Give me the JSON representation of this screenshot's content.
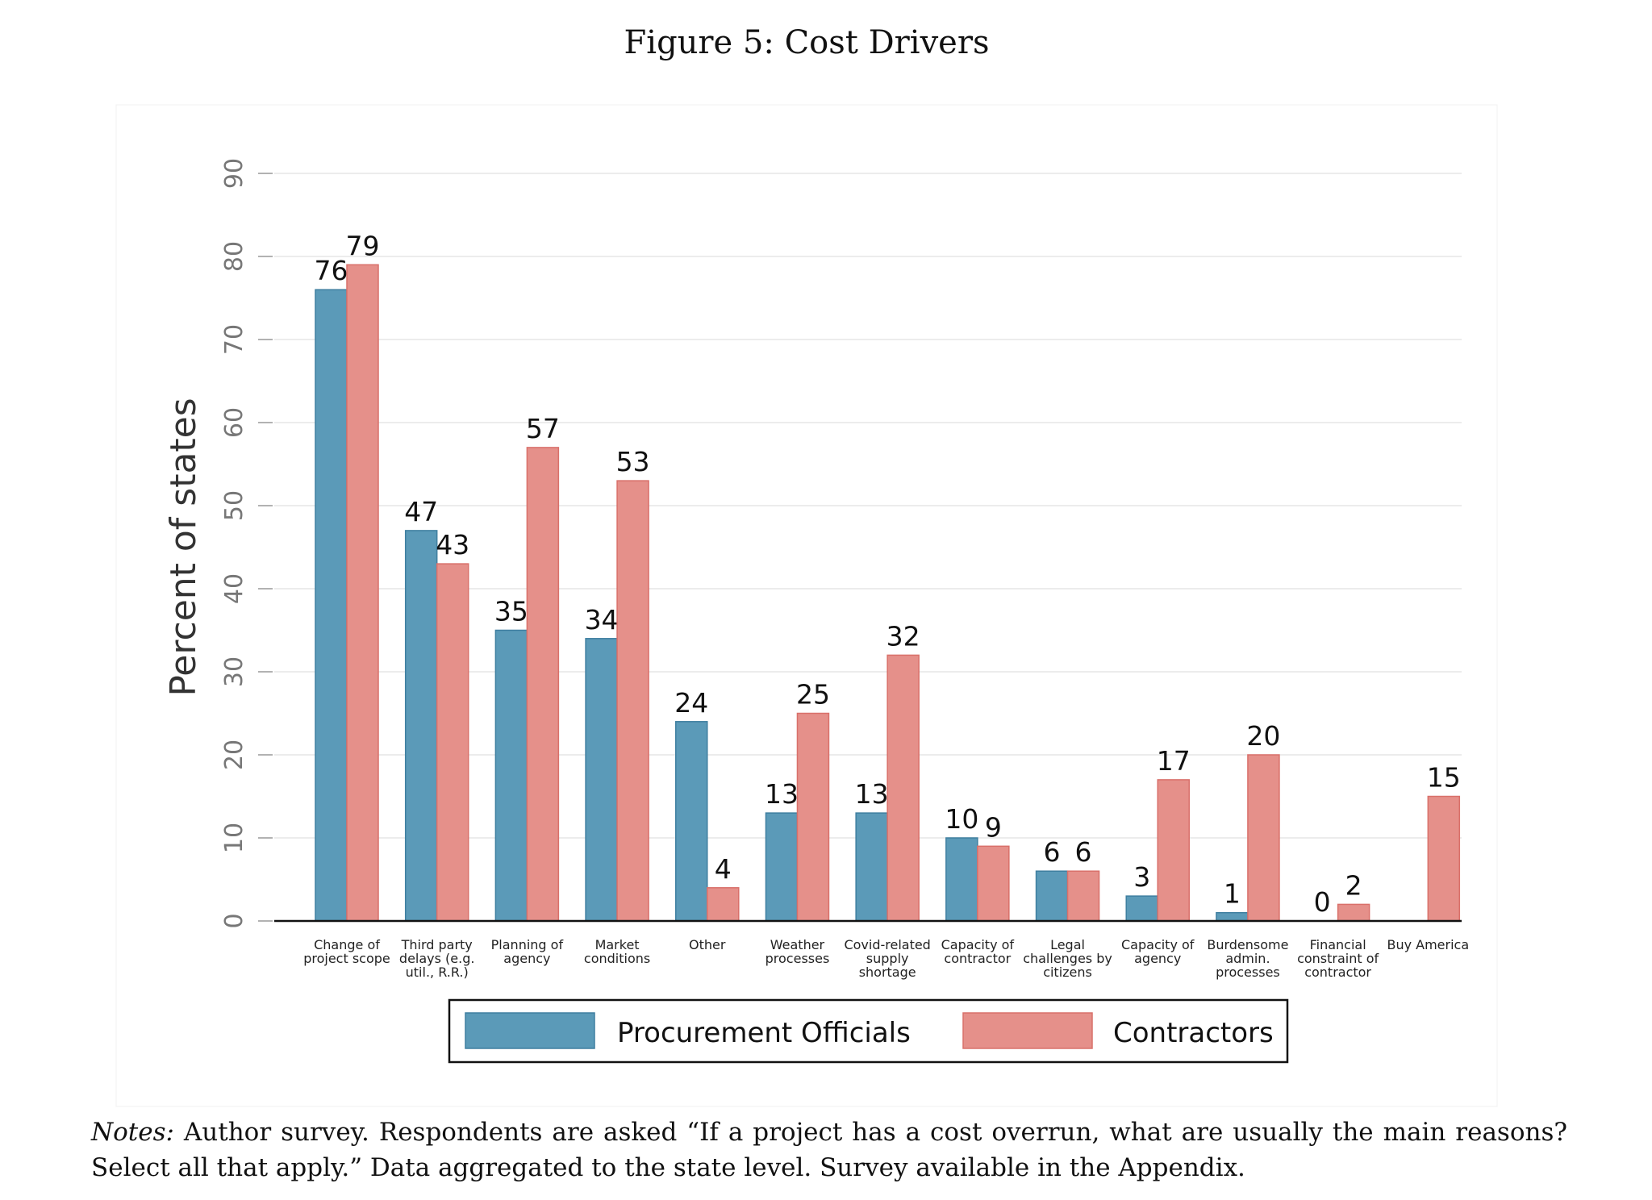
{
  "figure_title": "Figure 5: Cost Drivers",
  "notes": {
    "label": "Notes:",
    "text": " Author survey. Respondents are asked “If a project has a cost overrun, what are usually the main reasons? Select all that apply.” Data aggregated to the state level. Survey available in the Appendix."
  },
  "colors": {
    "series_1": "#5b9ab8",
    "series_1_edge": "#3f7fa0",
    "series_2": "#e5908a",
    "series_2_edge": "#d9706a",
    "grid": "#e6e6e6",
    "axis": "#111111",
    "tick_text": "#777777"
  },
  "chart_data": {
    "type": "bar",
    "ylabel": "Percent of states",
    "xlabel": "",
    "ylim": [
      0,
      90
    ],
    "yticks": [
      0,
      10,
      20,
      30,
      40,
      50,
      60,
      70,
      80,
      90
    ],
    "grid": true,
    "legend_placement": "bottom",
    "categories": [
      [
        "Change of",
        "project scope"
      ],
      [
        "Third party",
        "delays (e.g.",
        "util., R.R.)"
      ],
      [
        "Planning of",
        "agency"
      ],
      [
        "Market",
        "conditions"
      ],
      [
        "Other"
      ],
      [
        "Weather",
        "processes"
      ],
      [
        "Covid-related",
        "supply",
        "shortage"
      ],
      [
        "Capacity of",
        "contractor"
      ],
      [
        "Legal",
        "challenges by",
        "citizens"
      ],
      [
        "Capacity of",
        "agency"
      ],
      [
        "Burdensome",
        "admin.",
        "processes"
      ],
      [
        "Financial",
        "constraint of",
        "contractor"
      ],
      [
        "Buy America"
      ]
    ],
    "series": [
      {
        "name": "Procurement Officials",
        "values": [
          76,
          47,
          35,
          34,
          24,
          13,
          13,
          10,
          6,
          3,
          1,
          0,
          null
        ],
        "labels": [
          "76",
          "47",
          "35",
          "34",
          "24",
          "13",
          "13",
          "10",
          "6",
          "3",
          "1",
          "0",
          ""
        ]
      },
      {
        "name": "Contractors",
        "values": [
          79,
          43,
          57,
          53,
          4,
          25,
          32,
          9,
          6,
          17,
          20,
          2,
          15
        ],
        "labels": [
          "79",
          "43",
          "57",
          "53",
          "4",
          "25",
          "32",
          "9",
          "6",
          "17",
          "20",
          "2",
          "15"
        ]
      }
    ]
  }
}
